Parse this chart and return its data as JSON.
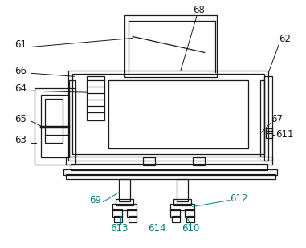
{
  "bg_color": "#ffffff",
  "line_color": "#1a1a1a",
  "teal_color": "#008080",
  "fig_width": 3.81,
  "fig_height": 3.09,
  "dpi": 100
}
